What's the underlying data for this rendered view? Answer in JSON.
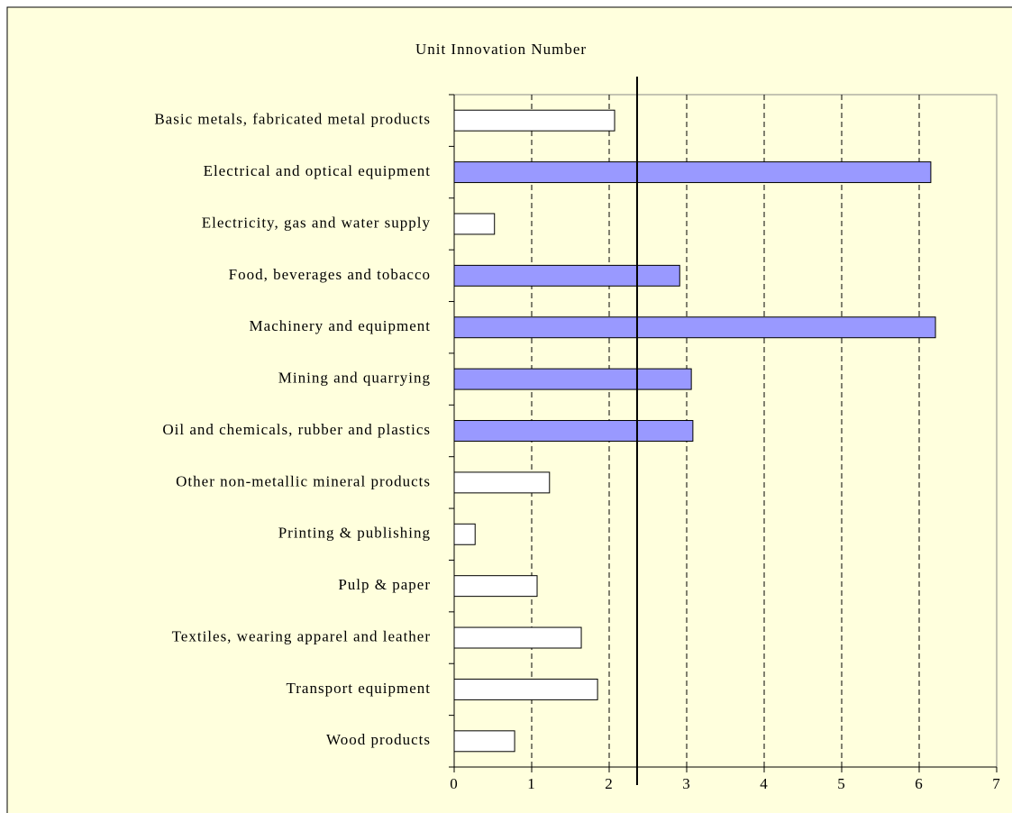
{
  "chart_data": {
    "type": "barh",
    "title": "Unit Innovation Number",
    "categories": [
      "Basic metals, fabricated metal products",
      "Electrical and optical equipment",
      "Electricity, gas and water supply",
      "Food, beverages and tobacco",
      "Machinery and equipment",
      "Mining and quarrying",
      "Oil and chemicals, rubber and plastics",
      "Other non-metallic mineral products",
      "Printing & publishing",
      "Pulp & paper",
      "Textiles, wearing apparel and leather",
      "Transport equipment",
      "Wood products"
    ],
    "values": [
      2.07,
      6.15,
      0.52,
      2.91,
      6.21,
      3.06,
      3.08,
      1.23,
      0.27,
      1.07,
      1.64,
      1.85,
      0.78
    ],
    "colors": [
      "#ffffff",
      "#9999ff",
      "#ffffff",
      "#9999ff",
      "#9999ff",
      "#9999ff",
      "#9999ff",
      "#ffffff",
      "#ffffff",
      "#ffffff",
      "#ffffff",
      "#ffffff",
      "#ffffff"
    ],
    "reference_line": 2.36,
    "xlim": [
      0,
      7
    ],
    "xticks": [
      0,
      1,
      2,
      3,
      4,
      5,
      6,
      7
    ],
    "grid": true
  }
}
